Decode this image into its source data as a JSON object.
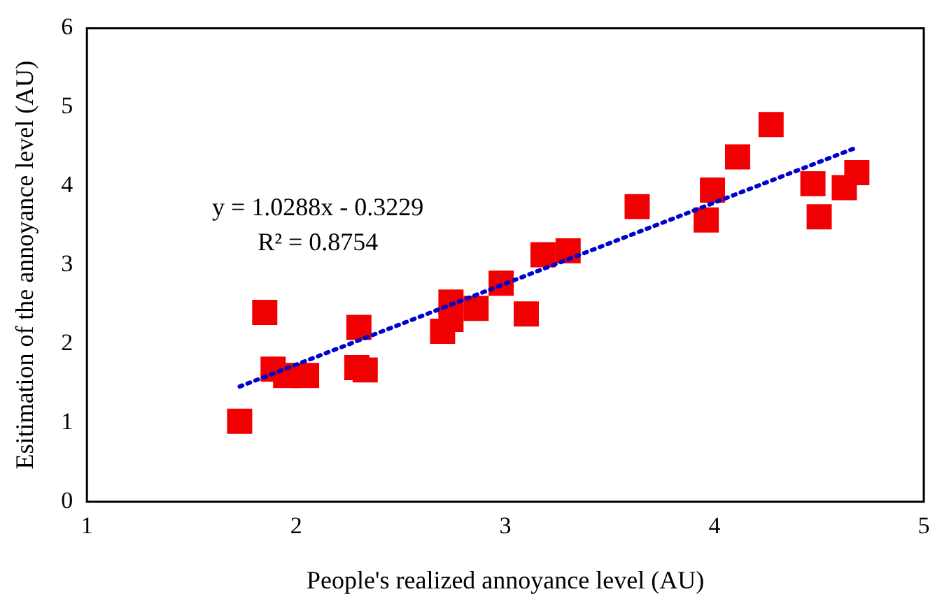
{
  "chart_data": {
    "type": "scatter",
    "xlabel": "People's realized annoyance level (AU)",
    "ylabel": "Esitimation of the annoyance level (AU)",
    "xlim": [
      1,
      5
    ],
    "xticks": [
      1,
      2,
      3,
      4,
      5
    ],
    "ylim": [
      0,
      6
    ],
    "yticks": [
      0,
      1,
      2,
      3,
      4,
      5,
      6
    ],
    "grid": false,
    "legend": false,
    "marker": "square",
    "annotations": [
      "y = 1.0288x - 0.3229",
      "R² = 0.8754"
    ],
    "series": [
      {
        "color": "#f00000",
        "x": [
          1.73,
          1.85,
          1.89,
          1.95,
          2.05,
          2.3,
          2.29,
          2.33,
          2.7,
          2.74,
          2.74,
          2.86,
          2.98,
          3.1,
          3.18,
          3.3,
          3.63,
          3.96,
          3.99,
          4.11,
          4.27,
          4.47,
          4.5,
          4.62,
          4.68
        ],
        "values": [
          1.02,
          2.4,
          1.68,
          1.6,
          1.6,
          2.21,
          1.7,
          1.67,
          2.16,
          2.53,
          2.31,
          2.45,
          2.77,
          2.38,
          3.13,
          3.18,
          3.74,
          3.57,
          3.95,
          4.37,
          4.78,
          4.03,
          3.61,
          3.98,
          4.17
        ]
      },
      {
        "type": "line",
        "color": "#0000cc",
        "line_style": "dotted",
        "marker": "none",
        "x": [
          1.73,
          4.68
        ],
        "values": [
          1.46,
          4.49
        ]
      }
    ]
  }
}
